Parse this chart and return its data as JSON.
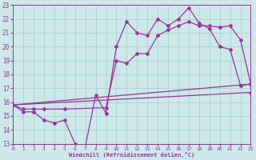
{
  "xlabel": "Windchill (Refroidissement éolien,°C)",
  "color": "#993399",
  "bg_color": "#cce8e8",
  "grid_color": "#aacccc",
  "ylim": [
    13,
    23
  ],
  "xlim": [
    0,
    23
  ],
  "yticks": [
    13,
    14,
    15,
    16,
    17,
    18,
    19,
    20,
    21,
    22,
    23
  ],
  "xticks": [
    0,
    1,
    2,
    3,
    4,
    5,
    6,
    7,
    8,
    9,
    10,
    11,
    12,
    13,
    14,
    15,
    16,
    17,
    18,
    19,
    20,
    21,
    22,
    23
  ],
  "line_jagged_x": [
    0,
    1,
    2,
    3,
    4,
    5,
    6,
    7,
    8,
    9,
    10,
    11,
    12,
    13,
    14,
    15,
    16,
    17,
    18,
    19,
    20,
    21,
    22,
    23
  ],
  "line_jagged_y": [
    15.8,
    15.3,
    15.3,
    14.7,
    14.5,
    14.7,
    13.0,
    12.8,
    16.5,
    15.2,
    20.0,
    21.8,
    21.0,
    20.8,
    22.0,
    21.5,
    22.0,
    22.8,
    21.7,
    21.3,
    20.0,
    19.8,
    17.2,
    17.3
  ],
  "line_upper_x": [
    0,
    1,
    2,
    3,
    5,
    9,
    10,
    11,
    12,
    13,
    14,
    15,
    16,
    17,
    18,
    19,
    20,
    21,
    22,
    23
  ],
  "line_upper_y": [
    15.8,
    15.5,
    15.5,
    15.5,
    15.5,
    15.6,
    19.0,
    18.8,
    19.5,
    19.5,
    20.8,
    21.2,
    21.5,
    21.8,
    21.5,
    21.5,
    21.4,
    21.5,
    20.5,
    17.3
  ],
  "line_trend1_x": [
    0,
    23
  ],
  "line_trend1_y": [
    15.8,
    17.3
  ],
  "line_trend2_x": [
    0,
    23
  ],
  "line_trend2_y": [
    15.8,
    16.7
  ]
}
